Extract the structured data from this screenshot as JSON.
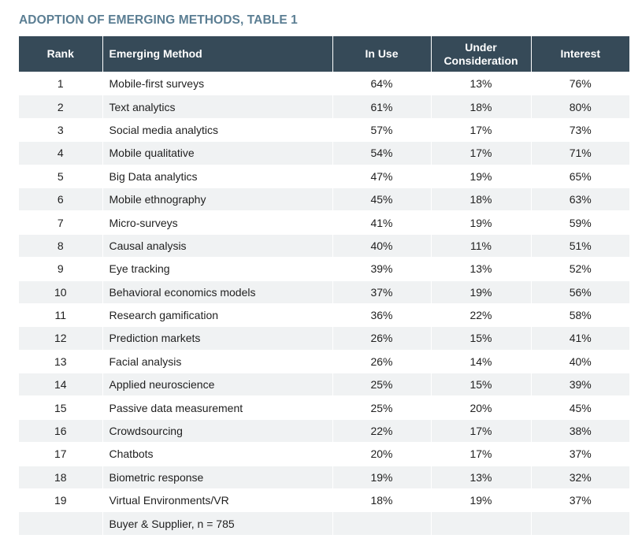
{
  "title": "ADOPTION OF EMERGING METHODS, TABLE 1",
  "table": {
    "headers": {
      "rank": "Rank",
      "method": "Emerging Method",
      "in_use": "In Use",
      "under_consideration_line1": "Under",
      "under_consideration_line2": "Consideration",
      "interest": "Interest"
    },
    "rows": [
      {
        "rank": "1",
        "method": "Mobile-first surveys",
        "in_use": "64%",
        "under": "13%",
        "interest": "76%"
      },
      {
        "rank": "2",
        "method": "Text analytics",
        "in_use": "61%",
        "under": "18%",
        "interest": "80%"
      },
      {
        "rank": "3",
        "method": "Social media analytics",
        "in_use": "57%",
        "under": "17%",
        "interest": "73%"
      },
      {
        "rank": "4",
        "method": "Mobile qualitative",
        "in_use": "54%",
        "under": "17%",
        "interest": "71%"
      },
      {
        "rank": "5",
        "method": "Big Data analytics",
        "in_use": "47%",
        "under": "19%",
        "interest": "65%"
      },
      {
        "rank": "6",
        "method": "Mobile ethnography",
        "in_use": "45%",
        "under": "18%",
        "interest": "63%"
      },
      {
        "rank": "7",
        "method": "Micro-surveys",
        "in_use": "41%",
        "under": "19%",
        "interest": "59%"
      },
      {
        "rank": "8",
        "method": "Causal analysis",
        "in_use": "40%",
        "under": "11%",
        "interest": "51%"
      },
      {
        "rank": "9",
        "method": "Eye tracking",
        "in_use": "39%",
        "under": "13%",
        "interest": "52%"
      },
      {
        "rank": "10",
        "method": "Behavioral economics models",
        "in_use": "37%",
        "under": "19%",
        "interest": "56%"
      },
      {
        "rank": "11",
        "method": "Research gamification",
        "in_use": "36%",
        "under": "22%",
        "interest": "58%"
      },
      {
        "rank": "12",
        "method": "Prediction markets",
        "in_use": "26%",
        "under": "15%",
        "interest": "41%"
      },
      {
        "rank": "13",
        "method": "Facial analysis",
        "in_use": "26%",
        "under": "14%",
        "interest": "40%"
      },
      {
        "rank": "14",
        "method": "Applied neuroscience",
        "in_use": "25%",
        "under": "15%",
        "interest": "39%"
      },
      {
        "rank": "15",
        "method": "Passive data measurement",
        "in_use": "25%",
        "under": "20%",
        "interest": "45%"
      },
      {
        "rank": "16",
        "method": "Crowdsourcing",
        "in_use": "22%",
        "under": "17%",
        "interest": "38%"
      },
      {
        "rank": "17",
        "method": "Chatbots",
        "in_use": "20%",
        "under": "17%",
        "interest": "37%"
      },
      {
        "rank": "18",
        "method": "Biometric response",
        "in_use": "19%",
        "under": "13%",
        "interest": "32%"
      },
      {
        "rank": "19",
        "method": "Virtual Environments/VR",
        "in_use": "18%",
        "under": "19%",
        "interest": "37%"
      }
    ],
    "footer_note": "Buyer & Supplier, n = 785"
  }
}
